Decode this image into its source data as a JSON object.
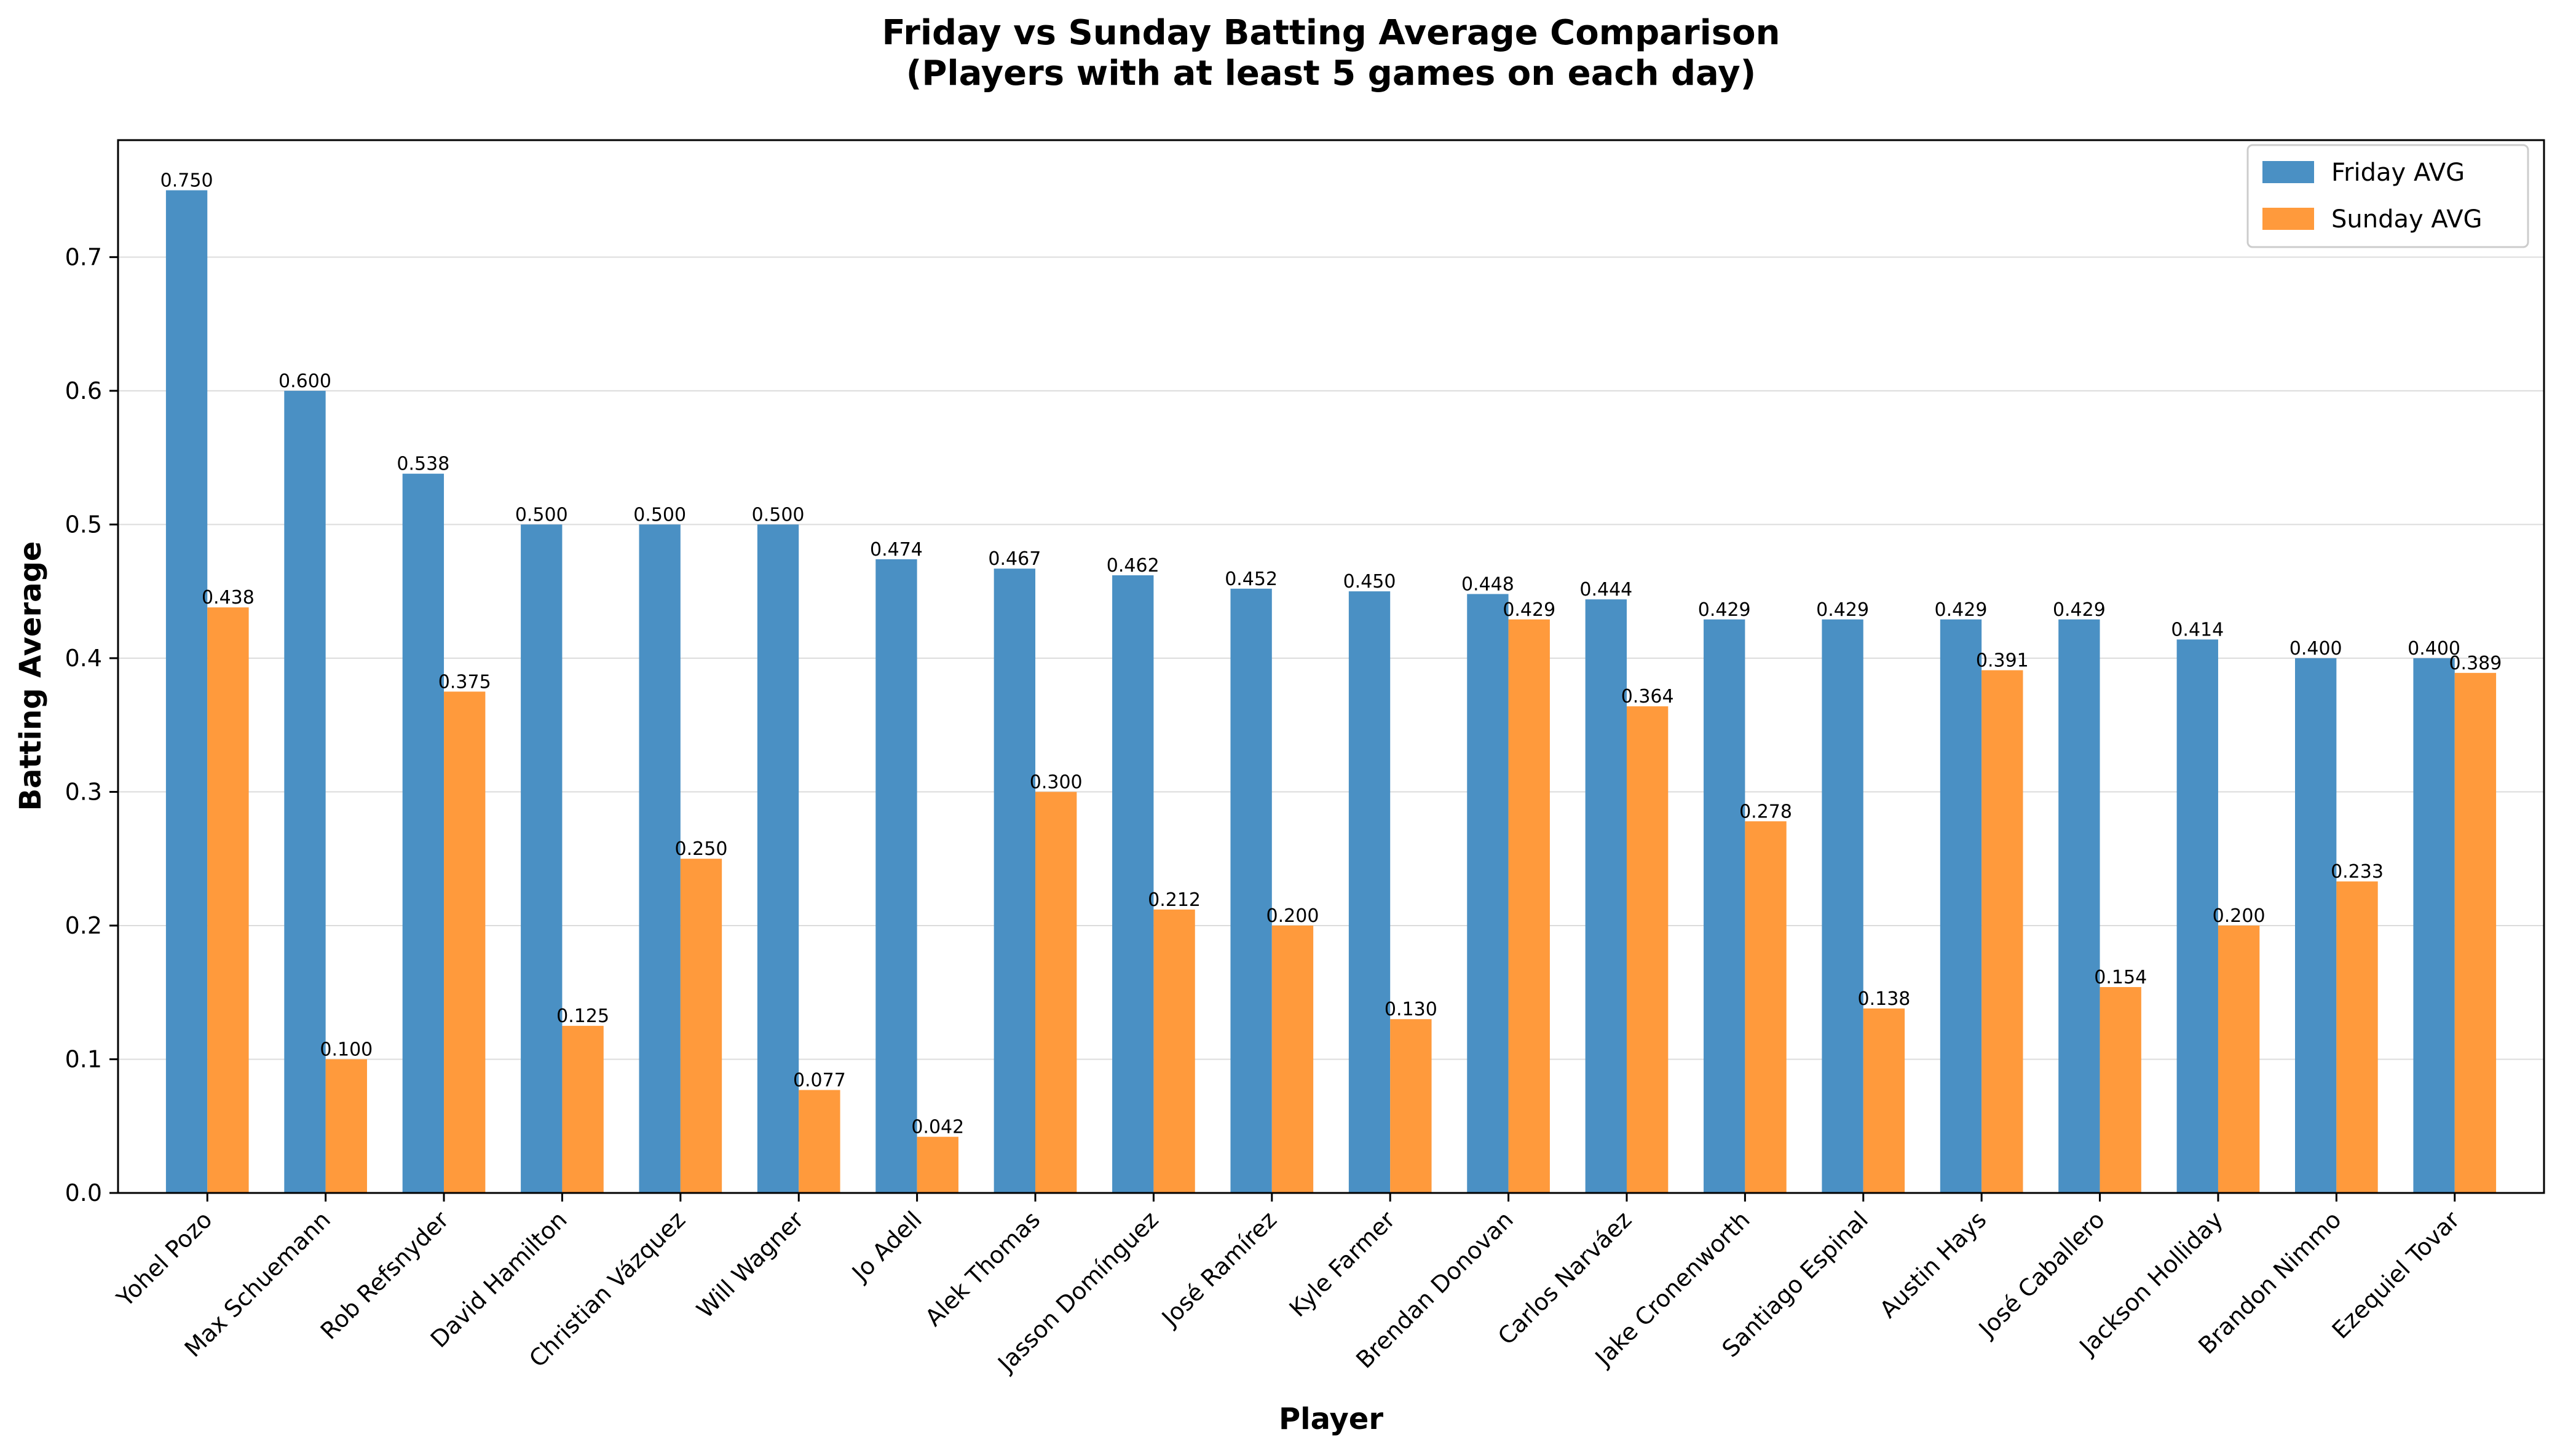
{
  "chart_data": {
    "type": "bar",
    "title": "Friday vs Sunday Batting Average Comparison",
    "subtitle": "(Players with at least 5 games on each day)",
    "xlabel": "Player",
    "ylabel": "Batting Average",
    "ylim": [
      0,
      0.7875
    ],
    "yticks": [
      "0.0",
      "0.1",
      "0.2",
      "0.3",
      "0.4",
      "0.5",
      "0.6",
      "0.7"
    ],
    "ytick_values": [
      0,
      0.1,
      0.2,
      0.3,
      0.4,
      0.5,
      0.6,
      0.7
    ],
    "grid": "horizontal",
    "legend_position": "top-right",
    "categories": [
      "Yohel Pozo",
      "Max Schuemann",
      "Rob Refsnyder",
      "David Hamilton",
      "Christian Vázquez",
      "Will Wagner",
      "Jo Adell",
      "Alek Thomas",
      "Jasson Domínguez",
      "José Ramírez",
      "Kyle Farmer",
      "Brendan Donovan",
      "Carlos Narváez",
      "Jake Cronenworth",
      "Santiago Espinal",
      "Austin Hays",
      "José Caballero",
      "Jackson Holliday",
      "Brandon Nimmo",
      "Ezequiel Tovar"
    ],
    "series": [
      {
        "name": "Friday AVG",
        "color": "#4a90c4",
        "values": [
          0.75,
          0.6,
          0.538,
          0.5,
          0.5,
          0.5,
          0.474,
          0.467,
          0.462,
          0.452,
          0.45,
          0.448,
          0.444,
          0.429,
          0.429,
          0.429,
          0.429,
          0.414,
          0.4,
          0.4
        ],
        "labels": [
          "0.750",
          "0.600",
          "0.538",
          "0.500",
          "0.500",
          "0.500",
          "0.474",
          "0.467",
          "0.462",
          "0.452",
          "0.450",
          "0.448",
          "0.444",
          "0.429",
          "0.429",
          "0.429",
          "0.429",
          "0.414",
          "0.400",
          "0.400"
        ]
      },
      {
        "name": "Sunday AVG",
        "color": "#ff9a3c",
        "values": [
          0.438,
          0.1,
          0.375,
          0.125,
          0.25,
          0.077,
          0.042,
          0.3,
          0.212,
          0.2,
          0.13,
          0.429,
          0.364,
          0.278,
          0.138,
          0.391,
          0.154,
          0.2,
          0.233,
          0.389
        ],
        "labels": [
          "0.438",
          "0.100",
          "0.375",
          "0.125",
          "0.250",
          "0.077",
          "0.042",
          "0.300",
          "0.212",
          "0.200",
          "0.130",
          "0.429",
          "0.364",
          "0.278",
          "0.138",
          "0.391",
          "0.154",
          "0.200",
          "0.233",
          "0.389"
        ]
      }
    ]
  }
}
